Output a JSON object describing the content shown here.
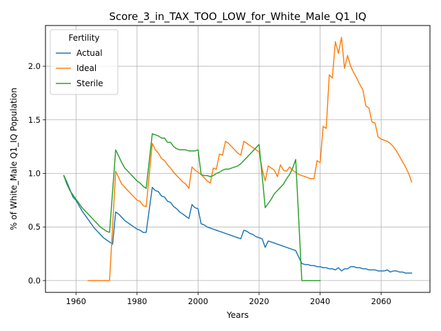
{
  "chart_data": {
    "type": "line",
    "title": "Score_3_in_TAX_TOO_LOW_for_White_Male_Q1_IQ",
    "xlabel": "Years",
    "ylabel": "% of White_Male Q1_IQ Population",
    "xlim": [
      1950,
      2076
    ],
    "ylim": [
      -0.11,
      2.38
    ],
    "xticks": [
      1960,
      1980,
      2000,
      2020,
      2040,
      2060
    ],
    "yticks": [
      0.0,
      0.5,
      1.0,
      1.5,
      2.0
    ],
    "ytick_labels": [
      "0.0",
      "0.5",
      "1.0",
      "1.5",
      "2.0"
    ],
    "grid": true,
    "legend": {
      "title": "Fertility",
      "placement": "top-left"
    },
    "series": [
      {
        "name": "Actual",
        "color": "#1f77b4",
        "points": [
          [
            1956,
            0.98
          ],
          [
            1957,
            0.92
          ],
          [
            1958,
            0.85
          ],
          [
            1959,
            0.78
          ],
          [
            1960,
            0.75
          ],
          [
            1961,
            0.7
          ],
          [
            1962,
            0.65
          ],
          [
            1963,
            0.61
          ],
          [
            1964,
            0.57
          ],
          [
            1965,
            0.53
          ],
          [
            1966,
            0.49
          ],
          [
            1967,
            0.46
          ],
          [
            1968,
            0.43
          ],
          [
            1969,
            0.4
          ],
          [
            1970,
            0.38
          ],
          [
            1971,
            0.36
          ],
          [
            1972,
            0.34
          ],
          [
            1973,
            0.64
          ],
          [
            1974,
            0.62
          ],
          [
            1975,
            0.59
          ],
          [
            1976,
            0.56
          ],
          [
            1977,
            0.54
          ],
          [
            1978,
            0.52
          ],
          [
            1979,
            0.5
          ],
          [
            1980,
            0.48
          ],
          [
            1981,
            0.47
          ],
          [
            1982,
            0.45
          ],
          [
            1983,
            0.45
          ],
          [
            1985,
            0.87
          ],
          [
            1986,
            0.84
          ],
          [
            1987,
            0.83
          ],
          [
            1988,
            0.79
          ],
          [
            1989,
            0.78
          ],
          [
            1990,
            0.74
          ],
          [
            1991,
            0.73
          ],
          [
            1992,
            0.69
          ],
          [
            1993,
            0.67
          ],
          [
            1994,
            0.64
          ],
          [
            1995,
            0.62
          ],
          [
            1996,
            0.6
          ],
          [
            1997,
            0.58
          ],
          [
            1998,
            0.71
          ],
          [
            1999,
            0.68
          ],
          [
            2000,
            0.67
          ],
          [
            2001,
            0.53
          ],
          [
            2002,
            0.52
          ],
          [
            2003,
            0.5
          ],
          [
            2004,
            0.49
          ],
          [
            2005,
            0.48
          ],
          [
            2006,
            0.47
          ],
          [
            2007,
            0.46
          ],
          [
            2008,
            0.45
          ],
          [
            2009,
            0.44
          ],
          [
            2010,
            0.43
          ],
          [
            2011,
            0.42
          ],
          [
            2012,
            0.41
          ],
          [
            2013,
            0.4
          ],
          [
            2014,
            0.39
          ],
          [
            2015,
            0.47
          ],
          [
            2016,
            0.46
          ],
          [
            2017,
            0.44
          ],
          [
            2018,
            0.43
          ],
          [
            2019,
            0.41
          ],
          [
            2020,
            0.4
          ],
          [
            2021,
            0.39
          ],
          [
            2022,
            0.31
          ],
          [
            2023,
            0.37
          ],
          [
            2024,
            0.36
          ],
          [
            2025,
            0.35
          ],
          [
            2026,
            0.34
          ],
          [
            2027,
            0.33
          ],
          [
            2028,
            0.32
          ],
          [
            2029,
            0.31
          ],
          [
            2030,
            0.3
          ],
          [
            2031,
            0.29
          ],
          [
            2032,
            0.28
          ],
          [
            2034,
            0.16
          ],
          [
            2035,
            0.15
          ],
          [
            2036,
            0.15
          ],
          [
            2037,
            0.14
          ],
          [
            2038,
            0.14
          ],
          [
            2039,
            0.13
          ],
          [
            2040,
            0.13
          ],
          [
            2041,
            0.12
          ],
          [
            2042,
            0.12
          ],
          [
            2043,
            0.11
          ],
          [
            2044,
            0.11
          ],
          [
            2045,
            0.1
          ],
          [
            2046,
            0.12
          ],
          [
            2047,
            0.09
          ],
          [
            2048,
            0.11
          ],
          [
            2049,
            0.11
          ],
          [
            2050,
            0.13
          ],
          [
            2051,
            0.13
          ],
          [
            2052,
            0.12
          ],
          [
            2053,
            0.12
          ],
          [
            2054,
            0.11
          ],
          [
            2055,
            0.11
          ],
          [
            2056,
            0.1
          ],
          [
            2057,
            0.1
          ],
          [
            2058,
            0.1
          ],
          [
            2059,
            0.09
          ],
          [
            2060,
            0.09
          ],
          [
            2061,
            0.09
          ],
          [
            2062,
            0.1
          ],
          [
            2063,
            0.08
          ],
          [
            2064,
            0.09
          ],
          [
            2065,
            0.09
          ],
          [
            2066,
            0.08
          ],
          [
            2067,
            0.08
          ],
          [
            2068,
            0.07
          ],
          [
            2069,
            0.07
          ],
          [
            2070,
            0.07
          ]
        ]
      },
      {
        "name": "Ideal",
        "color": "#ff7f0e",
        "points": [
          [
            1964,
            0.0
          ],
          [
            1965,
            0.0
          ],
          [
            1966,
            0.0
          ],
          [
            1967,
            0.0
          ],
          [
            1968,
            0.0
          ],
          [
            1969,
            0.0
          ],
          [
            1970,
            0.0
          ],
          [
            1971,
            0.0
          ],
          [
            1973,
            1.02
          ],
          [
            1974,
            0.96
          ],
          [
            1975,
            0.9
          ],
          [
            1976,
            0.87
          ],
          [
            1977,
            0.84
          ],
          [
            1978,
            0.81
          ],
          [
            1979,
            0.78
          ],
          [
            1980,
            0.75
          ],
          [
            1981,
            0.74
          ],
          [
            1982,
            0.7
          ],
          [
            1983,
            0.69
          ],
          [
            1985,
            1.28
          ],
          [
            1986,
            1.22
          ],
          [
            1987,
            1.19
          ],
          [
            1988,
            1.14
          ],
          [
            1989,
            1.12
          ],
          [
            1990,
            1.08
          ],
          [
            1991,
            1.05
          ],
          [
            1992,
            1.01
          ],
          [
            1993,
            0.98
          ],
          [
            1994,
            0.95
          ],
          [
            1995,
            0.92
          ],
          [
            1996,
            0.9
          ],
          [
            1997,
            0.86
          ],
          [
            1998,
            1.06
          ],
          [
            1999,
            1.03
          ],
          [
            2000,
            1.01
          ],
          [
            2001,
            0.99
          ],
          [
            2002,
            0.96
          ],
          [
            2003,
            0.93
          ],
          [
            2004,
            0.91
          ],
          [
            2005,
            1.05
          ],
          [
            2006,
            1.04
          ],
          [
            2007,
            1.18
          ],
          [
            2008,
            1.17
          ],
          [
            2009,
            1.3
          ],
          [
            2010,
            1.28
          ],
          [
            2011,
            1.25
          ],
          [
            2012,
            1.22
          ],
          [
            2013,
            1.19
          ],
          [
            2014,
            1.17
          ],
          [
            2015,
            1.3
          ],
          [
            2016,
            1.28
          ],
          [
            2017,
            1.26
          ],
          [
            2018,
            1.24
          ],
          [
            2019,
            1.22
          ],
          [
            2020,
            1.2
          ],
          [
            2021,
            1.04
          ],
          [
            2022,
            0.93
          ],
          [
            2023,
            1.07
          ],
          [
            2024,
            1.05
          ],
          [
            2025,
            1.03
          ],
          [
            2026,
            0.97
          ],
          [
            2027,
            1.08
          ],
          [
            2028,
            1.03
          ],
          [
            2029,
            1.02
          ],
          [
            2030,
            1.06
          ],
          [
            2031,
            1.03
          ],
          [
            2032,
            1.01
          ],
          [
            2033,
            0.99
          ],
          [
            2034,
            0.98
          ],
          [
            2035,
            0.97
          ],
          [
            2036,
            0.96
          ],
          [
            2037,
            0.95
          ],
          [
            2038,
            0.95
          ],
          [
            2039,
            1.12
          ],
          [
            2040,
            1.1
          ],
          [
            2041,
            1.44
          ],
          [
            2042,
            1.42
          ],
          [
            2043,
            1.92
          ],
          [
            2044,
            1.89
          ],
          [
            2045,
            2.23
          ],
          [
            2046,
            2.12
          ],
          [
            2047,
            2.27
          ],
          [
            2048,
            1.98
          ],
          [
            2049,
            2.1
          ],
          [
            2050,
            2.0
          ],
          [
            2051,
            1.94
          ],
          [
            2052,
            1.89
          ],
          [
            2053,
            1.83
          ],
          [
            2054,
            1.78
          ],
          [
            2055,
            1.63
          ],
          [
            2056,
            1.61
          ],
          [
            2057,
            1.48
          ],
          [
            2058,
            1.47
          ],
          [
            2059,
            1.34
          ],
          [
            2060,
            1.32
          ],
          [
            2061,
            1.31
          ],
          [
            2062,
            1.3
          ],
          [
            2063,
            1.28
          ],
          [
            2064,
            1.25
          ],
          [
            2065,
            1.21
          ],
          [
            2066,
            1.16
          ],
          [
            2067,
            1.11
          ],
          [
            2068,
            1.06
          ],
          [
            2069,
            1.0
          ],
          [
            2070,
            0.92
          ]
        ]
      },
      {
        "name": "Sterile",
        "color": "#2ca02c",
        "points": [
          [
            1956,
            0.98
          ],
          [
            1957,
            0.9
          ],
          [
            1958,
            0.84
          ],
          [
            1959,
            0.8
          ],
          [
            1960,
            0.76
          ],
          [
            1961,
            0.72
          ],
          [
            1962,
            0.68
          ],
          [
            1963,
            0.65
          ],
          [
            1964,
            0.62
          ],
          [
            1965,
            0.59
          ],
          [
            1966,
            0.56
          ],
          [
            1967,
            0.53
          ],
          [
            1968,
            0.5
          ],
          [
            1969,
            0.48
          ],
          [
            1970,
            0.46
          ],
          [
            1971,
            0.45
          ],
          [
            1973,
            1.22
          ],
          [
            1974,
            1.16
          ],
          [
            1975,
            1.1
          ],
          [
            1976,
            1.05
          ],
          [
            1977,
            1.02
          ],
          [
            1978,
            0.99
          ],
          [
            1979,
            0.96
          ],
          [
            1980,
            0.93
          ],
          [
            1981,
            0.91
          ],
          [
            1982,
            0.88
          ],
          [
            1983,
            0.86
          ],
          [
            1985,
            1.37
          ],
          [
            1986,
            1.36
          ],
          [
            1987,
            1.35
          ],
          [
            1988,
            1.33
          ],
          [
            1989,
            1.33
          ],
          [
            1990,
            1.29
          ],
          [
            1991,
            1.29
          ],
          [
            1992,
            1.25
          ],
          [
            1993,
            1.23
          ],
          [
            1994,
            1.22
          ],
          [
            1995,
            1.22
          ],
          [
            1996,
            1.22
          ],
          [
            1997,
            1.21
          ],
          [
            1998,
            1.21
          ],
          [
            1999,
            1.21
          ],
          [
            2000,
            1.22
          ],
          [
            2001,
            0.99
          ],
          [
            2002,
            0.98
          ],
          [
            2003,
            0.98
          ],
          [
            2004,
            0.97
          ],
          [
            2005,
            0.98
          ],
          [
            2006,
            1.0
          ],
          [
            2007,
            1.01
          ],
          [
            2008,
            1.03
          ],
          [
            2009,
            1.04
          ],
          [
            2010,
            1.04
          ],
          [
            2011,
            1.05
          ],
          [
            2012,
            1.06
          ],
          [
            2013,
            1.07
          ],
          [
            2014,
            1.09
          ],
          [
            2015,
            1.12
          ],
          [
            2016,
            1.15
          ],
          [
            2017,
            1.18
          ],
          [
            2018,
            1.21
          ],
          [
            2019,
            1.24
          ],
          [
            2020,
            1.27
          ],
          [
            2021,
            0.98
          ],
          [
            2022,
            0.68
          ],
          [
            2023,
            0.72
          ],
          [
            2024,
            0.76
          ],
          [
            2025,
            0.81
          ],
          [
            2026,
            0.84
          ],
          [
            2027,
            0.87
          ],
          [
            2028,
            0.9
          ],
          [
            2029,
            0.95
          ],
          [
            2030,
            0.99
          ],
          [
            2031,
            1.05
          ],
          [
            2032,
            1.13
          ],
          [
            2034,
            0.0
          ],
          [
            2035,
            0.0
          ],
          [
            2036,
            0.0
          ],
          [
            2037,
            0.0
          ],
          [
            2038,
            0.0
          ],
          [
            2039,
            0.0
          ],
          [
            2040,
            0.0
          ]
        ]
      }
    ]
  }
}
